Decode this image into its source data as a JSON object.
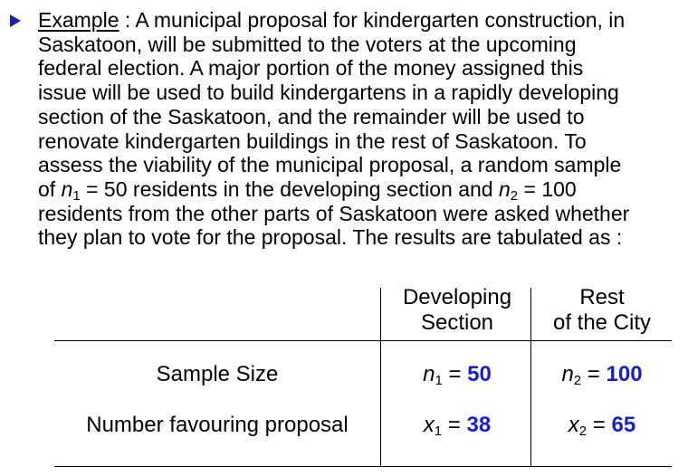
{
  "example": {
    "label": "Example",
    "lines": [
      " : A municipal proposal for kindergarten construction, in",
      "Saskatoon, will be submitted to the voters at the upcoming",
      "federal election. A major portion of the money assigned this",
      "issue will be used to build kindergartens in a rapidly developing",
      "section of the Saskatoon, and the remainder will be used to",
      "renovate kindergarten buildings in the rest of Saskatoon. To",
      "assess the viability of the municipal proposal, a random sample",
      "residents from the other parts of Saskatoon were asked whether",
      "they plan to vote for the proposal. The results are tabulated as :"
    ],
    "line7": {
      "pre": "of ",
      "var1": "n",
      "sub1": "1",
      "mid1": " = 50 residents in the developing section and ",
      "var2": "n",
      "sub2": "2",
      "mid2": " = 100"
    }
  },
  "table": {
    "col1_header": [
      "Developing",
      "Section"
    ],
    "col2_header": [
      "Rest",
      "of the City"
    ],
    "rows": [
      {
        "label": "Sample Size",
        "c1": {
          "var": "n",
          "sub": "1",
          "eq": " = ",
          "value": "50"
        },
        "c2": {
          "var": "n",
          "sub": "2",
          "eq": " = ",
          "value": "100"
        }
      },
      {
        "label": "Number favouring proposal",
        "c1": {
          "var": "x",
          "sub": "1",
          "eq": " = ",
          "value": "38"
        },
        "c2": {
          "var": "x",
          "sub": "2",
          "eq": " = ",
          "value": "65"
        }
      }
    ]
  },
  "colors": {
    "bullet": "#1a1fb0",
    "value": "#1a1fcc"
  }
}
